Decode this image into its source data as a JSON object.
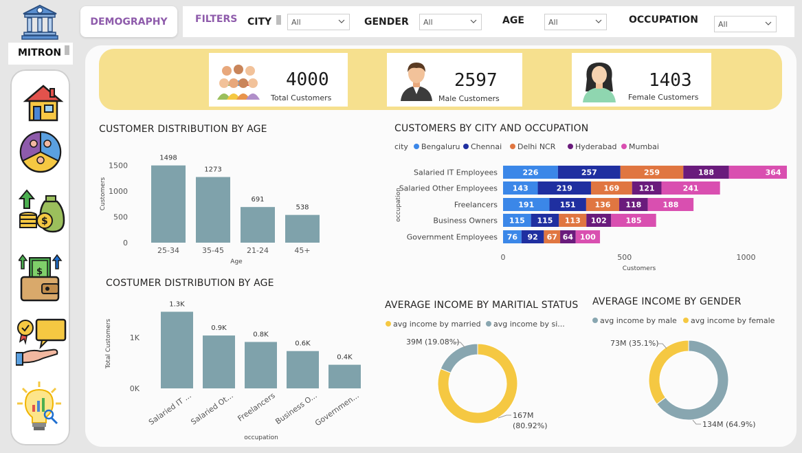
{
  "brand": {
    "name": "MITRON",
    "logo_icon": "bank-building-icon"
  },
  "nav": {
    "demography_label": "DEMOGRAPHY"
  },
  "filters": {
    "title": "FILTERS",
    "city": {
      "label": "CITY",
      "value": "All"
    },
    "gender": {
      "label": "GENDER",
      "value": "All"
    },
    "age": {
      "label": "AGE",
      "value": "All"
    },
    "occupation": {
      "label": "OCCUPATION",
      "value": "All"
    }
  },
  "sidebar": {
    "items": [
      {
        "icon": "home-icon"
      },
      {
        "icon": "people-pie-icon"
      },
      {
        "icon": "money-growth-icon"
      },
      {
        "icon": "wallet-cash-icon"
      },
      {
        "icon": "award-hand-icon"
      },
      {
        "icon": "insight-bulb-icon"
      }
    ]
  },
  "kpis": {
    "total": {
      "value": "4000",
      "label": "Total Customers",
      "icon": "group-people-icon"
    },
    "male": {
      "value": "2597",
      "label": "Male Customers",
      "icon": "male-avatar-icon"
    },
    "female": {
      "value": "1403",
      "label": "Female Customers",
      "icon": "female-avatar-icon"
    }
  },
  "colors": {
    "bar": "#7fa2ab",
    "bengaluru": "#3b87e8",
    "chennai": "#1f2fa0",
    "delhi": "#e07641",
    "hyderabad": "#6a1b7c",
    "mumbai": "#d94fb0",
    "married": "#f5c842",
    "single": "#88a6b0",
    "kpi_band": "#f6e08e"
  },
  "chart_data": [
    {
      "type": "bar",
      "title": "CUSTOMER DISTRIBUTION BY AGE",
      "xlabel": "Age",
      "ylabel": "Customers",
      "categories": [
        "25-34",
        "35-45",
        "21-24",
        "45+"
      ],
      "values": [
        1498,
        1273,
        691,
        538
      ],
      "value_labels": [
        "1498",
        "1273",
        "691",
        "538"
      ],
      "yticks": [
        "0",
        "500",
        "1000",
        "1500"
      ],
      "ylim": [
        0,
        1600
      ]
    },
    {
      "type": "bar",
      "orientation": "horizontal-stacked",
      "title": "CUSTOMERS BY CITY AND OCCUPATION",
      "xlabel": "Customers",
      "ylabel": "occupation",
      "legend_title": "city",
      "categories": [
        "Salaried IT Employees",
        "Salaried Other Employees",
        "Freelancers",
        "Business Owners",
        "Government Employees"
      ],
      "series": [
        {
          "name": "Bengaluru",
          "values": [
            226,
            143,
            191,
            115,
            76
          ]
        },
        {
          "name": "Chennai",
          "values": [
            257,
            219,
            151,
            115,
            92
          ]
        },
        {
          "name": "Delhi NCR",
          "values": [
            259,
            169,
            136,
            113,
            67
          ]
        },
        {
          "name": "Hyderabad",
          "values": [
            188,
            121,
            118,
            102,
            64
          ]
        },
        {
          "name": "Mumbai",
          "values": [
            364,
            241,
            188,
            185,
            100
          ]
        }
      ],
      "xticks": [
        "0",
        "500",
        "1000"
      ],
      "xlim": [
        0,
        1300
      ]
    },
    {
      "type": "bar",
      "title": "COSTUMER DISTRIBUTION BY AGE",
      "xlabel": "occupation",
      "ylabel": "Total Customers",
      "categories": [
        "Salaried IT ...",
        "Salaried Ot...",
        "Freelancers",
        "Business O...",
        "Governmen..."
      ],
      "values": [
        1294,
        893,
        784,
        630,
        399
      ],
      "value_labels": [
        "1.3K",
        "0.9K",
        "0.8K",
        "0.6K",
        "0.4K"
      ],
      "yticks": [
        "0K",
        "1K"
      ],
      "ylim": [
        0,
        1500
      ]
    },
    {
      "type": "pie",
      "title": "AVERAGE INCOME BY MARITIAL STATUS",
      "series": [
        {
          "name": "avg income by married",
          "value": 167,
          "label": "167M",
          "pct": "(80.92%)"
        },
        {
          "name": "avg income by si...",
          "value": 39,
          "label": "39M (19.08%)",
          "pct": ""
        }
      ]
    },
    {
      "type": "pie",
      "title": "AVERAGE INCOME BY GENDER",
      "series": [
        {
          "name": "avg income by male",
          "value": 134,
          "label": "134M (64.9%)"
        },
        {
          "name": "avg income by female",
          "value": 73,
          "label": "73M (35.1%)"
        }
      ]
    }
  ]
}
